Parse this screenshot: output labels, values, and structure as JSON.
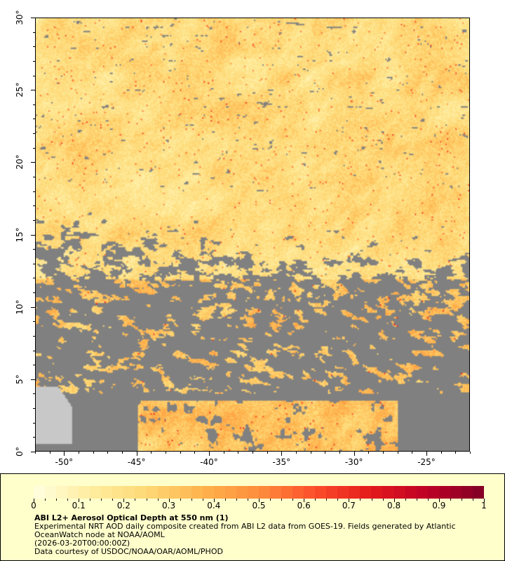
{
  "map": {
    "lon_range": [
      -52,
      -22
    ],
    "lat_range": [
      0,
      30
    ],
    "lon_ticks": [
      {
        "value": -50,
        "label": "-50°"
      },
      {
        "value": -45,
        "label": "-45°"
      },
      {
        "value": -40,
        "label": "-40°"
      },
      {
        "value": -35,
        "label": "-35°"
      },
      {
        "value": -30,
        "label": "-30°"
      },
      {
        "value": -25,
        "label": "-25°"
      }
    ],
    "lat_ticks": [
      {
        "value": 0,
        "label": "0°"
      },
      {
        "value": 5,
        "label": "5°"
      },
      {
        "value": 10,
        "label": "10°"
      },
      {
        "value": 15,
        "label": "15°"
      },
      {
        "value": 20,
        "label": "20°"
      },
      {
        "value": 25,
        "label": "25°"
      },
      {
        "value": 30,
        "label": "30°"
      }
    ],
    "colors": {
      "no_data": "#808080",
      "land": "#c8c8c8",
      "coastline": "#5aa0d8"
    }
  },
  "colorbar": {
    "range": [
      0,
      1
    ],
    "colormap": [
      "#ffffe0",
      "#ffeda0",
      "#fed976",
      "#feb24c",
      "#fd8d3c",
      "#fc4e2a",
      "#e31a1c",
      "#bd0026",
      "#800026"
    ],
    "labels": [
      "0",
      "0.1",
      "0.2",
      "0.3",
      "0.4",
      "0.5",
      "0.6",
      "0.7",
      "0.8",
      "0.9",
      "1"
    ]
  },
  "caption": {
    "title": "ABI L2+ Aerosol Optical Depth at 550 nm (1)",
    "line1": "Experimental NRT AOD daily composite created from ABI L2 data from GOES-19. Fields generated by Atlantic OceanWatch node at NOAA/AOML",
    "line2": "(2026-03-20T00:00:00Z)",
    "line3": "Data courtesy of USDOC/NOAA/OAR/AOML/PHOD"
  }
}
